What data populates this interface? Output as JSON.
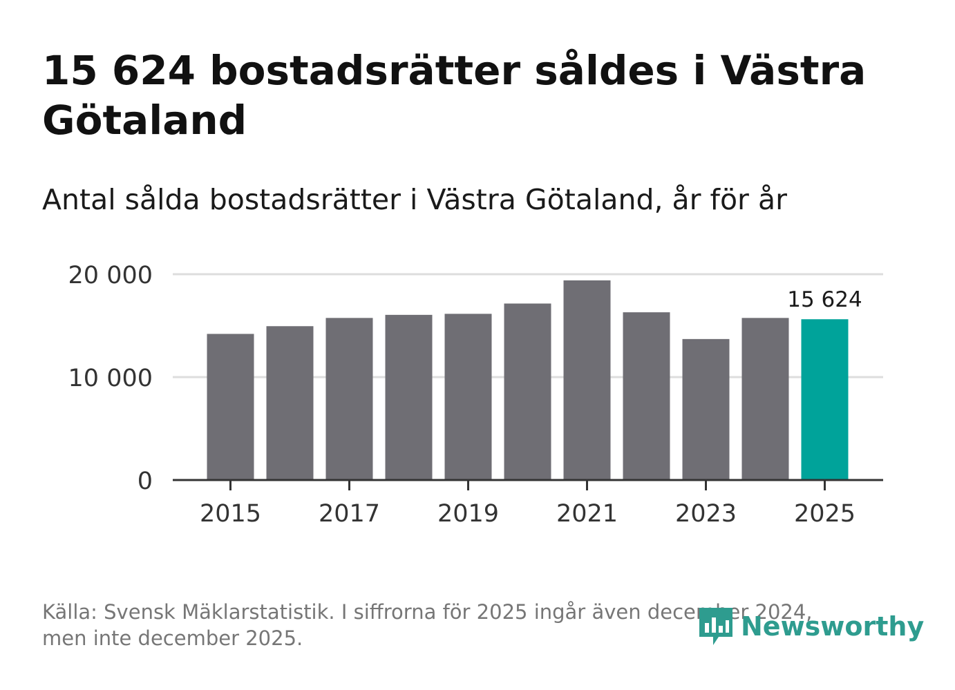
{
  "header": {
    "title": "15 624 bostadsrätter såldes i Västra Götaland",
    "subtitle": "Antal sålda bostadsrätter i Västra Götaland, år för år"
  },
  "footer": {
    "source_line1": "Källa: Svensk Mäklarstatistik. I siffrorna för 2025 ingår även december 2024,",
    "source_line2": "men inte december 2025."
  },
  "logo": {
    "text": "Newsworthy",
    "icon": "newsworthy-logo-icon"
  },
  "colors": {
    "bar": "#6f6e74",
    "highlight": "#00a39a",
    "grid": "#dddddd",
    "axis": "#333333"
  },
  "chart_data": {
    "type": "bar",
    "title": "Antal sålda bostadsrätter i Västra Götaland, år för år",
    "categories": [
      "2015",
      "2016",
      "2017",
      "2018",
      "2019",
      "2020",
      "2021",
      "2022",
      "2023",
      "2024",
      "2025"
    ],
    "values": [
      14200,
      14950,
      15750,
      16050,
      16150,
      17150,
      19400,
      16300,
      13700,
      15750,
      15624
    ],
    "highlight_index": 10,
    "highlight_label": "15 624",
    "ylim": [
      0,
      20000
    ],
    "yticks": [
      0,
      10000,
      20000
    ],
    "ytick_labels": [
      "0",
      "10 000",
      "20 000"
    ],
    "xtick_labels": [
      "2015",
      "2017",
      "2019",
      "2021",
      "2023",
      "2025"
    ],
    "xlabel": "",
    "ylabel": "",
    "grid": true
  }
}
